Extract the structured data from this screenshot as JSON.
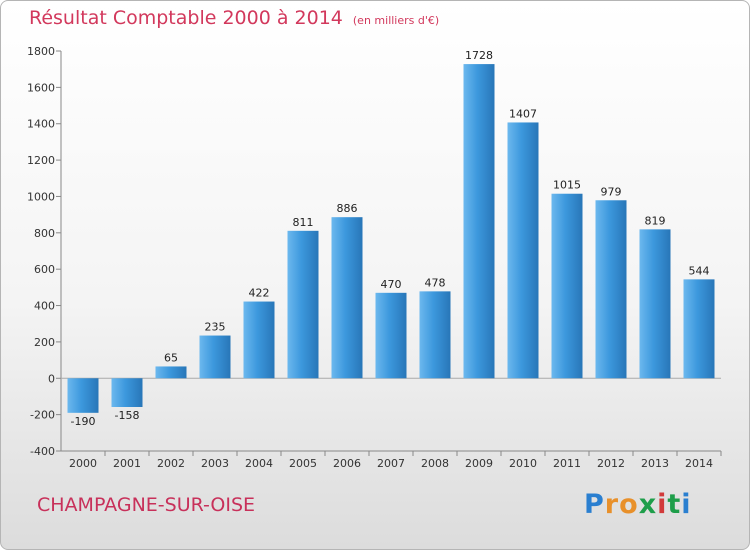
{
  "title": "Résultat Comptable 2000 à 2014",
  "unit": "(en milliers d'€)",
  "commune": "CHAMPAGNE-SUR-OISE",
  "logo": {
    "letters": [
      "P",
      "r",
      "o",
      "x",
      "i",
      "t",
      "i"
    ],
    "colors": [
      "#2a7fd0",
      "#e8902a",
      "#e8902a",
      "#1e9e4a",
      "#d23a3a",
      "#1e9e4a",
      "#2a7fd0"
    ]
  },
  "colors": {
    "bar": "#3c98dd",
    "bar_light": "#6cb8ee",
    "bar_dark": "#2876b8",
    "title": "#d2385c"
  },
  "chart_data": {
    "type": "bar",
    "title": "Résultat Comptable 2000 à 2014",
    "xlabel": "",
    "ylabel": "",
    "categories": [
      "2000",
      "2001",
      "2002",
      "2003",
      "2004",
      "2005",
      "2006",
      "2007",
      "2008",
      "2009",
      "2010",
      "2011",
      "2012",
      "2013",
      "2014"
    ],
    "values": [
      -190,
      -158,
      65,
      235,
      422,
      811,
      886,
      470,
      478,
      1728,
      1407,
      1015,
      979,
      819,
      544
    ],
    "value_labels": [
      "-190",
      "-158",
      "65",
      "235",
      "422",
      "811",
      "886",
      "470",
      "478",
      "1728",
      "1407",
      "1015",
      "979",
      "819",
      "544"
    ],
    "ylim": [
      -400,
      1800
    ],
    "yticks": [
      -400,
      -200,
      0,
      200,
      400,
      600,
      800,
      1000,
      1200,
      1400,
      1600,
      1800
    ],
    "grid": false,
    "legend": "none"
  }
}
